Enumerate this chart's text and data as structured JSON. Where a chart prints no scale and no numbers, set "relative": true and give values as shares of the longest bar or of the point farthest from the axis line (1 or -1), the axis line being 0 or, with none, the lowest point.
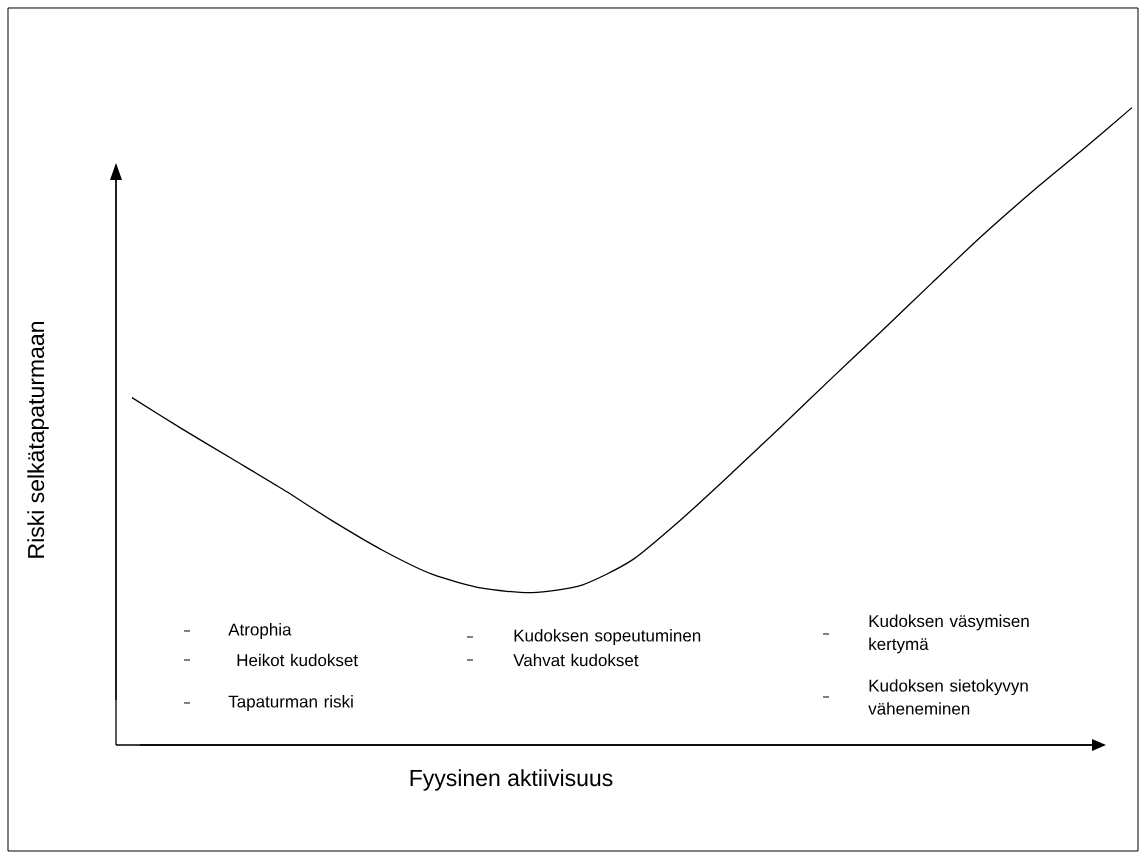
{
  "chart_data": {
    "type": "line",
    "relative": true,
    "xlabel": "Fyysinen aktiivisuus",
    "ylabel": "Riski selkätapaturmaan",
    "categories": [
      null,
      null,
      null,
      null,
      null,
      null,
      null,
      null,
      null,
      null,
      null,
      null,
      null,
      null,
      null,
      null,
      null,
      null,
      null,
      null,
      null
    ],
    "series": [
      {
        "color": "#000000",
        "values": [
          0.545,
          0.496,
          0.449,
          0.402,
          0.352,
          0.306,
          0.268,
          0.246,
          0.239,
          0.251,
          0.29,
          0.355,
          0.427,
          0.501,
          0.576,
          0.65,
          0.725,
          0.799,
          0.868,
          0.933,
          1.0
        ]
      }
    ],
    "annotations": [
      "Atrophia",
      "Heikot kudokset",
      "Tapaturman riski",
      "Kudoksen sopeutuminen",
      "Vahvat kudokset",
      "Kudoksen väsymisen kertymä",
      "Kudoksen sietokyvyn väheneminen"
    ]
  }
}
